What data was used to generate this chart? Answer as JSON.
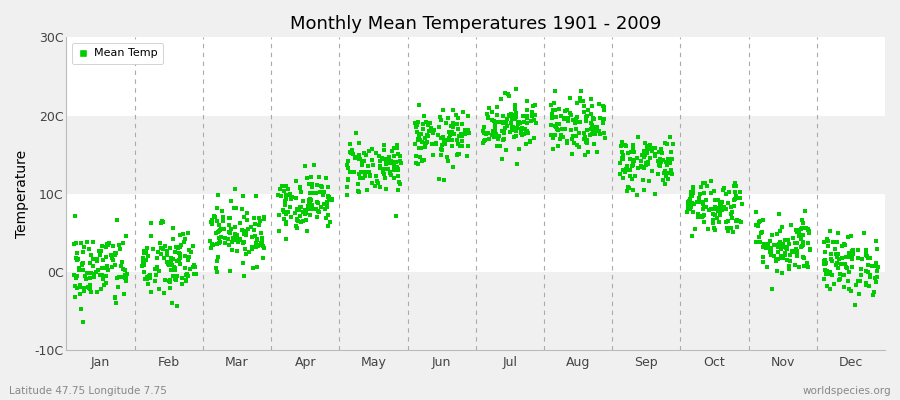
{
  "title": "Monthly Mean Temperatures 1901 - 2009",
  "ylabel": "Temperature",
  "bottom_left": "Latitude 47.75 Longitude 7.75",
  "bottom_right": "worldspecies.org",
  "legend_label": "Mean Temp",
  "ylim": [
    -10,
    30
  ],
  "yticks": [
    -10,
    0,
    10,
    20,
    30
  ],
  "ytick_labels": [
    "-10C",
    "0C",
    "10C",
    "20C",
    "30C"
  ],
  "months": [
    "Jan",
    "Feb",
    "Mar",
    "Apr",
    "May",
    "Jun",
    "Jul",
    "Aug",
    "Sep",
    "Oct",
    "Nov",
    "Dec"
  ],
  "month_means": [
    0.3,
    1.0,
    5.0,
    9.0,
    13.5,
    17.0,
    19.0,
    18.5,
    14.0,
    8.5,
    3.5,
    1.0
  ],
  "month_stds": [
    2.5,
    2.5,
    2.0,
    1.8,
    1.8,
    1.8,
    1.8,
    1.8,
    1.8,
    1.8,
    2.0,
    2.0
  ],
  "n_years": 109,
  "marker_color": "#00cc00",
  "marker": "s",
  "marker_size": 2.5,
  "background_color": "#f0f0f0",
  "plot_bg_color": "#f0f0f0",
  "band_color": "#ffffff",
  "dashed_line_color": "#aaaaaa",
  "seed": 42
}
